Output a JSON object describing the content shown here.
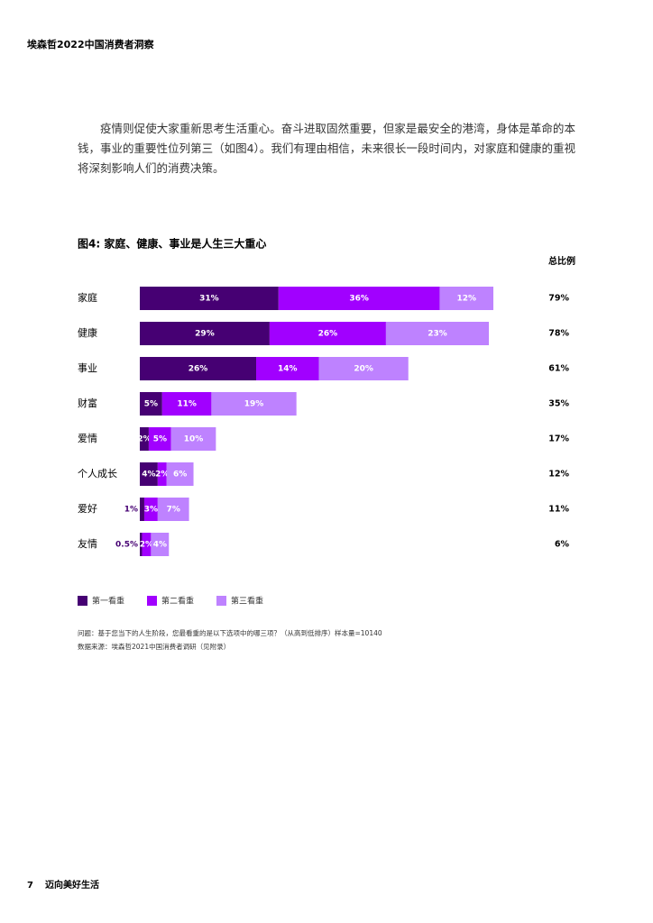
{
  "header": "埃森哲2022中国消费者洞察",
  "paragraph": "疫情则促使大家重新思考生活重心。奋斗进取固然重要，但家是最安全的港湾，身体是革命的本钱，事业的重要性位列第三（如图4）。我们有理由相信，未来很长一段时间内，对家庭和健康的重视将深刻影响人们的消费决策。",
  "chart_data": {
    "type": "bar",
    "title": "图4: 家庭、健康、事业是人生三大重心",
    "categories": [
      "家庭",
      "健康",
      "事业",
      "财富",
      "爱情",
      "个人成长",
      "爱好",
      "友情"
    ],
    "series": [
      {
        "name": "第一看重",
        "color": "#460073",
        "values": [
          31,
          29,
          26,
          5,
          2,
          4,
          1,
          0.5
        ],
        "value_labels": [
          "31%",
          "29%",
          "26%",
          "5%",
          "2%",
          "4%",
          "1%",
          "0.5%"
        ]
      },
      {
        "name": "第二看重",
        "color": "#a100ff",
        "values": [
          36,
          26,
          14,
          11,
          5,
          2,
          3,
          2
        ],
        "value_labels": [
          "36%",
          "26%",
          "14%",
          "11%",
          "5%",
          "2%",
          "3%",
          "2%"
        ]
      },
      {
        "name": "第三看重",
        "color": "#be82ff",
        "values": [
          12,
          23,
          20,
          19,
          10,
          6,
          7,
          4
        ],
        "value_labels": [
          "12%",
          "23%",
          "20%",
          "19%",
          "10%",
          "6%",
          "7%",
          "4%"
        ]
      }
    ],
    "totals": {
      "title": "总比例",
      "values": [
        79,
        78,
        61,
        35,
        17,
        12,
        11,
        6
      ],
      "value_labels": [
        "79%",
        "78%",
        "61%",
        "35%",
        "17%",
        "12%",
        "11%",
        "6%"
      ]
    }
  },
  "notes": [
    "问题：基于您当下的人生阶段，您最看重的是以下选项中的哪三项？（从高到低排序）样本量=10140",
    "数据来源：埃森哲2021中国消费者调研（见附录）"
  ],
  "footer": {
    "page": "7",
    "title": "迈向美好生活"
  }
}
